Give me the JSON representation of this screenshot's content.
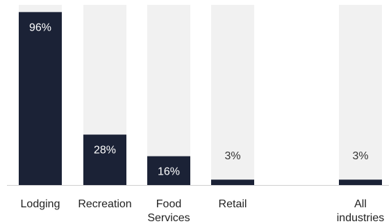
{
  "chart_data": {
    "type": "bar",
    "categories": [
      [
        "Lodging"
      ],
      [
        "Recreation"
      ],
      [
        "Food",
        "Services"
      ],
      [
        "Retail"
      ],
      [
        "All",
        "industries"
      ]
    ],
    "values": [
      96,
      28,
      16,
      3,
      3
    ],
    "value_labels": [
      "96%",
      "28%",
      "16%",
      "3%",
      "3%"
    ],
    "ylim": [
      0,
      100
    ],
    "grid": false,
    "title": "",
    "xlabel": "",
    "ylabel": "",
    "colors": {
      "bar": "#1b2236",
      "track": "#f1f1f1",
      "axis": "#cfcfcf",
      "label_on_bar": "#ffffff",
      "label_on_track": "#333333"
    }
  }
}
